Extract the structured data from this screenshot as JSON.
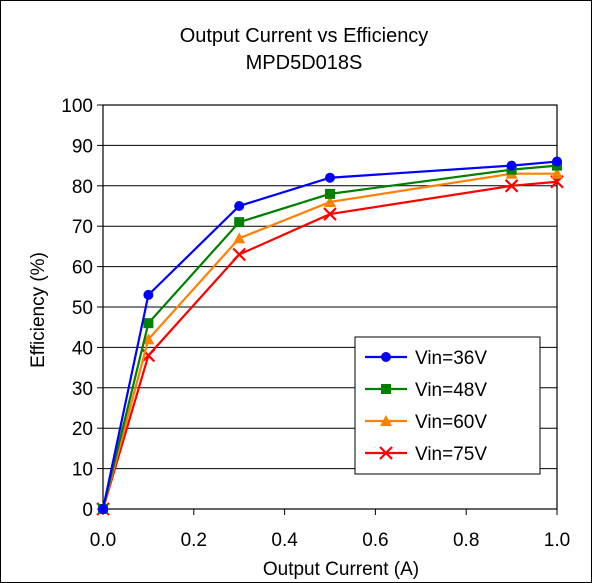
{
  "chart_data": {
    "type": "line",
    "title": "Output Current vs Efficiency",
    "subtitle": "MPD5D018S",
    "xlabel": "Output Current (A)",
    "ylabel": "Efficiency (%)",
    "xlim": [
      0.0,
      1.0
    ],
    "ylim": [
      0,
      100
    ],
    "xticks": [
      "0.0",
      "0.2",
      "0.4",
      "0.6",
      "0.8",
      "1.0"
    ],
    "yticks": [
      "0",
      "10",
      "20",
      "30",
      "40",
      "50",
      "60",
      "70",
      "80",
      "90",
      "100"
    ],
    "grid": "horizontal",
    "legend_position": "bottom-right",
    "series": [
      {
        "name": "Vin=36V",
        "color": "#0000ff",
        "marker": "circle",
        "x": [
          0.0,
          0.1,
          0.3,
          0.5,
          0.9,
          1.0
        ],
        "y": [
          0,
          53,
          75,
          82,
          85,
          86
        ]
      },
      {
        "name": "Vin=48V",
        "color": "#008000",
        "marker": "square",
        "x": [
          0.0,
          0.1,
          0.3,
          0.5,
          0.9,
          1.0
        ],
        "y": [
          0,
          46,
          71,
          78,
          84,
          85
        ]
      },
      {
        "name": "Vin=60V",
        "color": "#ff8000",
        "marker": "triangle",
        "x": [
          0.0,
          0.1,
          0.3,
          0.5,
          0.9,
          1.0
        ],
        "y": [
          0,
          42,
          67,
          76,
          83,
          83
        ]
      },
      {
        "name": "Vin=75V",
        "color": "#ff0000",
        "marker": "x",
        "x": [
          0.0,
          0.1,
          0.3,
          0.5,
          0.9,
          1.0
        ],
        "y": [
          0,
          38,
          63,
          73,
          80,
          81
        ]
      }
    ]
  }
}
